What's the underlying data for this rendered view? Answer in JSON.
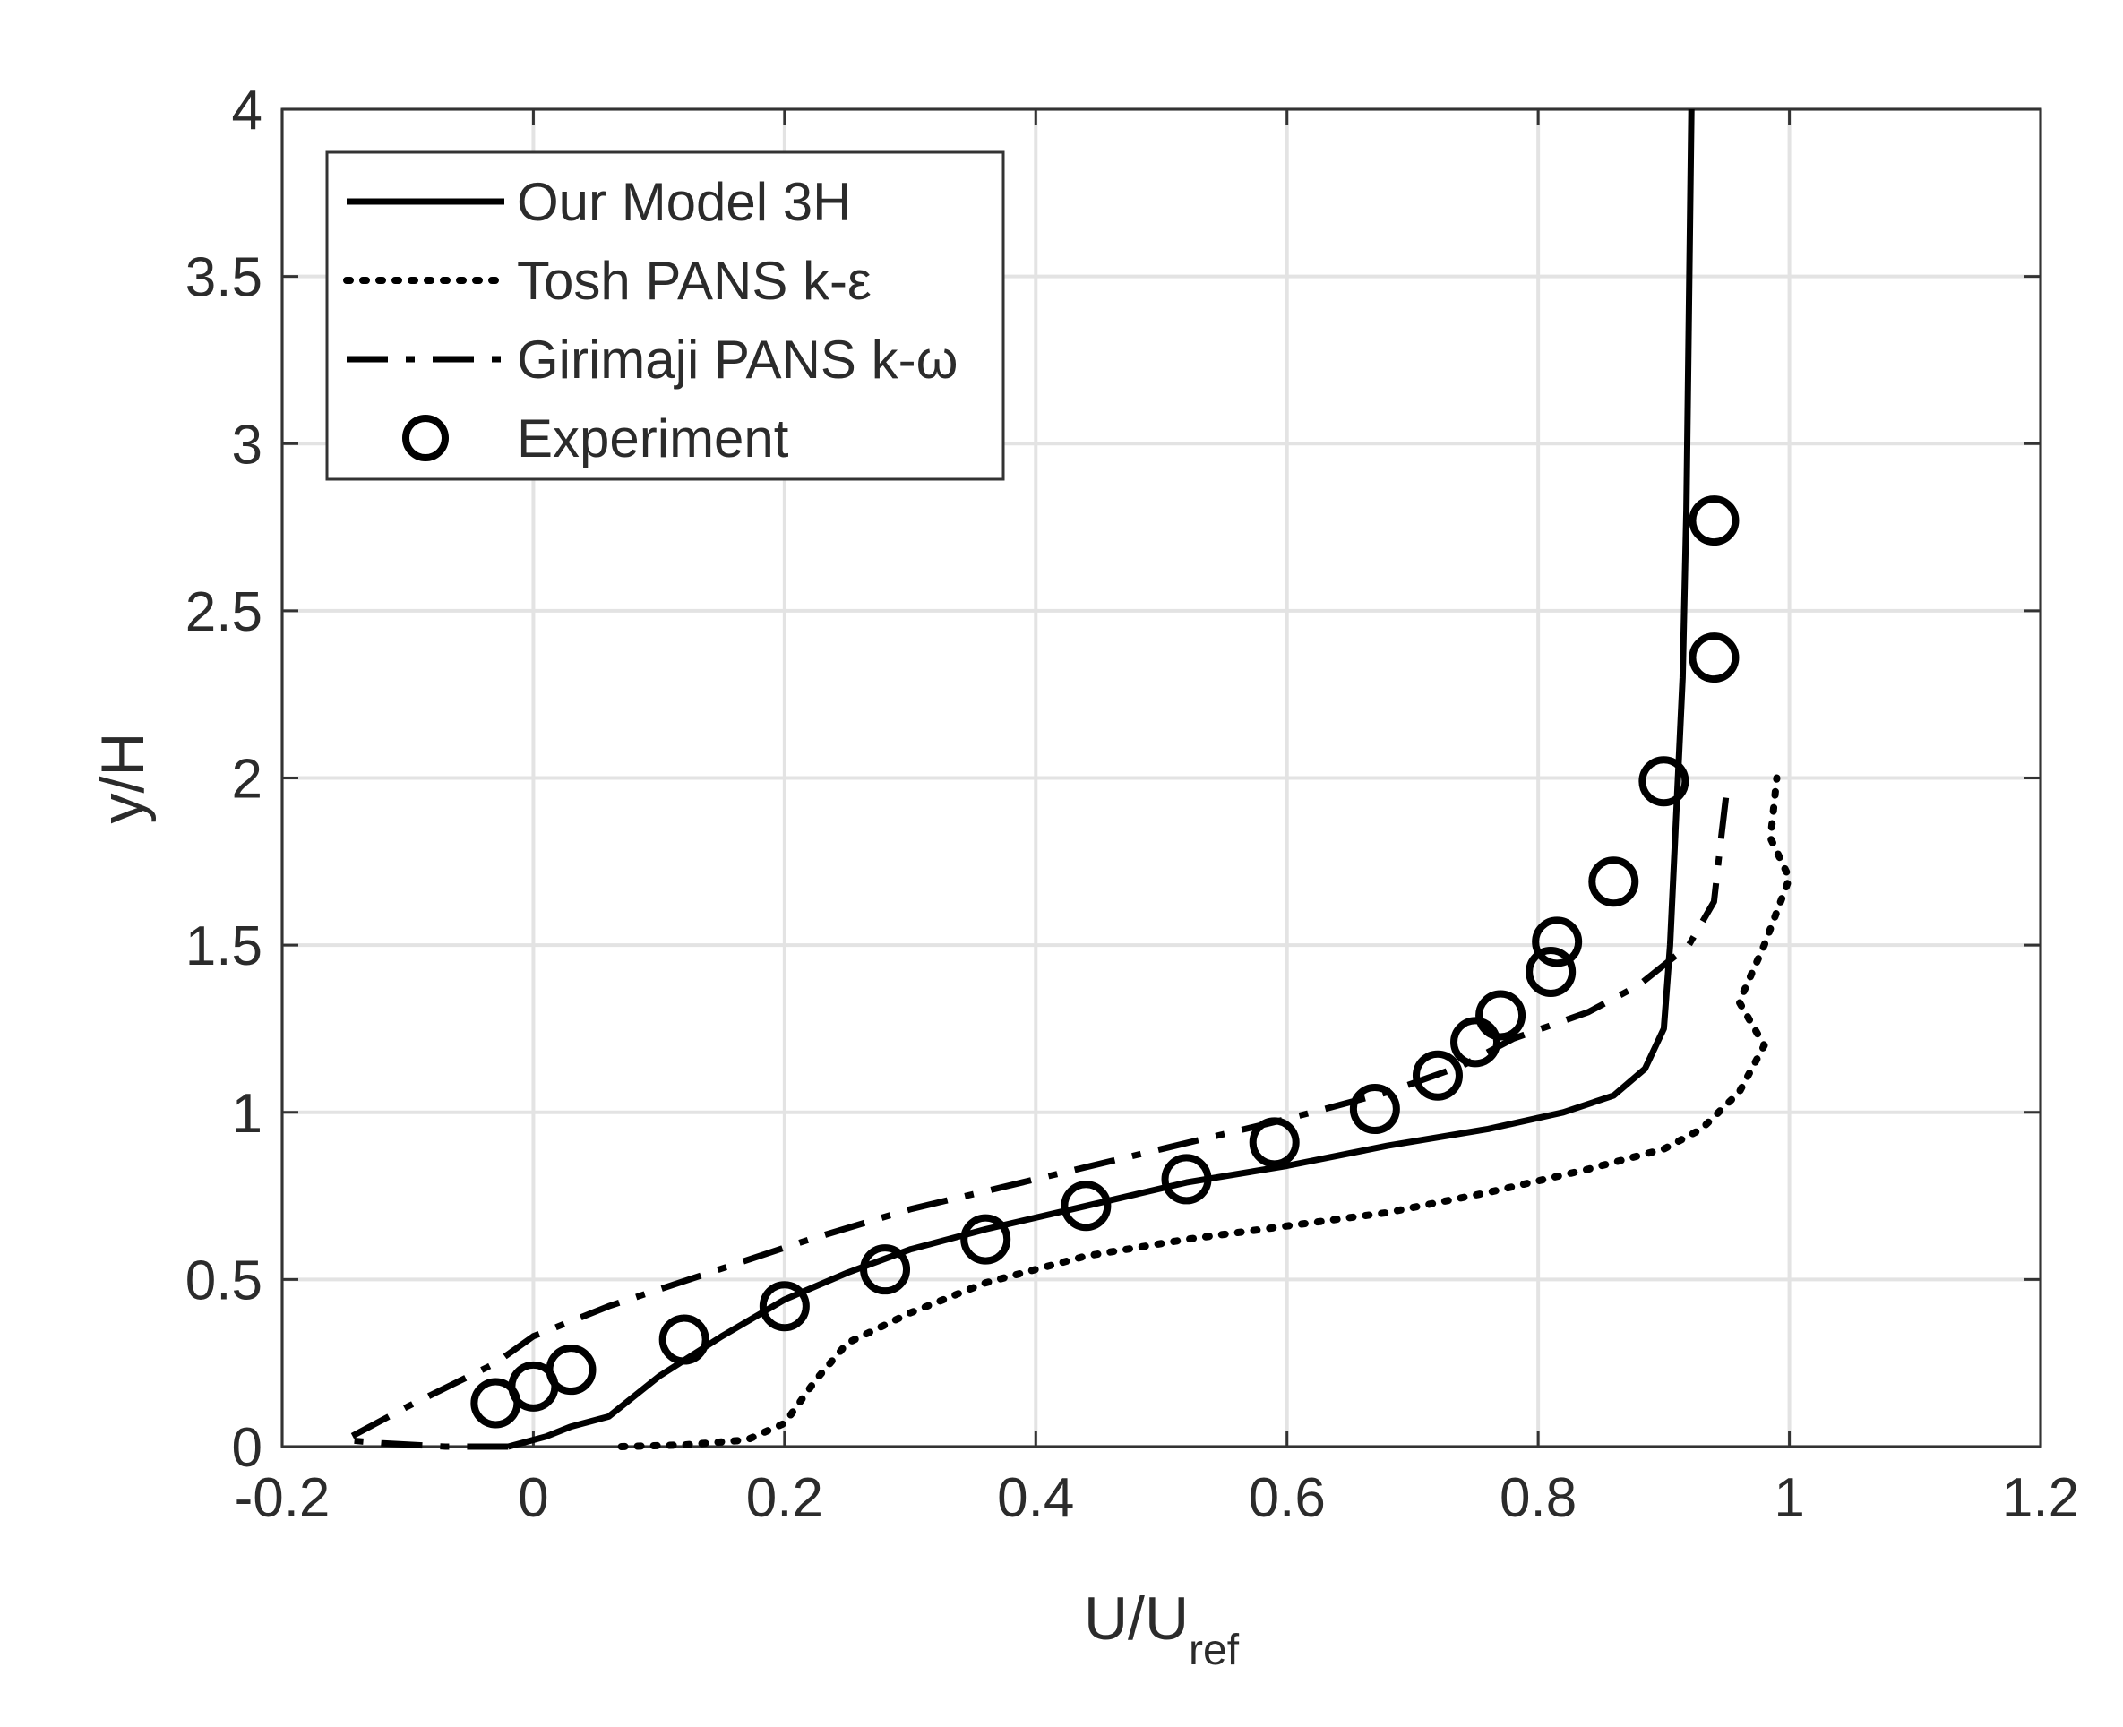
{
  "chart_data": {
    "type": "line",
    "xlabel": "U/U",
    "xlabel_subscript": "ref",
    "ylabel": "y/H",
    "xlim": [
      -0.2,
      1.2
    ],
    "ylim": [
      0,
      4
    ],
    "xticks": [
      -0.2,
      0,
      0.2,
      0.4,
      0.6,
      0.8,
      1,
      1.2
    ],
    "xtick_labels": [
      "-0.2",
      "0",
      "0.2",
      "0.4",
      "0.6",
      "0.8",
      "1",
      "1.2"
    ],
    "yticks": [
      0,
      0.5,
      1,
      1.5,
      2,
      2.5,
      3,
      3.5,
      4
    ],
    "ytick_labels": [
      "0",
      "0.5",
      "1",
      "1.5",
      "2",
      "2.5",
      "3",
      "3.5",
      "4"
    ],
    "grid": true,
    "legend_position": "top-left",
    "series": [
      {
        "name": "Our Model 3H",
        "style": "solid",
        "color": "#000000",
        "points": [
          [
            -0.02,
            0
          ],
          [
            0.01,
            0.03
          ],
          [
            0.03,
            0.06
          ],
          [
            0.06,
            0.09
          ],
          [
            0.1,
            0.21
          ],
          [
            0.15,
            0.33
          ],
          [
            0.2,
            0.44
          ],
          [
            0.25,
            0.52
          ],
          [
            0.3,
            0.59
          ],
          [
            0.36,
            0.65
          ],
          [
            0.44,
            0.72
          ],
          [
            0.52,
            0.79
          ],
          [
            0.6,
            0.84
          ],
          [
            0.68,
            0.9
          ],
          [
            0.76,
            0.95
          ],
          [
            0.82,
            1.0
          ],
          [
            0.86,
            1.05
          ],
          [
            0.885,
            1.13
          ],
          [
            0.9,
            1.25
          ],
          [
            0.905,
            1.5
          ],
          [
            0.91,
            1.9
          ],
          [
            0.915,
            2.3
          ],
          [
            0.918,
            2.8
          ],
          [
            0.92,
            3.4
          ],
          [
            0.922,
            4.0
          ]
        ]
      },
      {
        "name": "Tosh PANS k-ε",
        "style": "dotted",
        "color": "#000000",
        "points": [
          [
            0.07,
            0
          ],
          [
            0.12,
            0.005
          ],
          [
            0.17,
            0.02
          ],
          [
            0.2,
            0.07
          ],
          [
            0.225,
            0.2
          ],
          [
            0.25,
            0.31
          ],
          [
            0.3,
            0.4
          ],
          [
            0.36,
            0.49
          ],
          [
            0.44,
            0.57
          ],
          [
            0.52,
            0.62
          ],
          [
            0.6,
            0.66
          ],
          [
            0.68,
            0.7
          ],
          [
            0.76,
            0.76
          ],
          [
            0.84,
            0.83
          ],
          [
            0.9,
            0.89
          ],
          [
            0.93,
            0.95
          ],
          [
            0.96,
            1.06
          ],
          [
            0.98,
            1.2
          ],
          [
            0.96,
            1.33
          ],
          [
            0.98,
            1.5
          ],
          [
            1.0,
            1.7
          ],
          [
            0.985,
            1.82
          ],
          [
            0.99,
            2.0
          ]
        ]
      },
      {
        "name": "Girimaji PANS k-ω",
        "style": "dashdot",
        "color": "#000000",
        "points": [
          [
            -0.02,
            0
          ],
          [
            -0.07,
            0
          ],
          [
            -0.12,
            0.01
          ],
          [
            -0.15,
            0.02
          ],
          [
            -0.1,
            0.12
          ],
          [
            -0.03,
            0.25
          ],
          [
            0.0,
            0.33
          ],
          [
            0.06,
            0.42
          ],
          [
            0.14,
            0.52
          ],
          [
            0.22,
            0.62
          ],
          [
            0.3,
            0.71
          ],
          [
            0.4,
            0.8
          ],
          [
            0.5,
            0.89
          ],
          [
            0.6,
            0.98
          ],
          [
            0.68,
            1.06
          ],
          [
            0.74,
            1.14
          ],
          [
            0.78,
            1.22
          ],
          [
            0.84,
            1.3
          ],
          [
            0.88,
            1.38
          ],
          [
            0.92,
            1.5
          ],
          [
            0.94,
            1.63
          ],
          [
            0.945,
            1.8
          ],
          [
            0.95,
            1.96
          ]
        ]
      },
      {
        "name": "Experiment",
        "style": "marker",
        "marker": "circle",
        "color": "#000000",
        "points": [
          [
            -0.03,
            0.13
          ],
          [
            0.0,
            0.18
          ],
          [
            0.03,
            0.23
          ],
          [
            0.12,
            0.32
          ],
          [
            0.2,
            0.42
          ],
          [
            0.28,
            0.53
          ],
          [
            0.36,
            0.62
          ],
          [
            0.44,
            0.72
          ],
          [
            0.52,
            0.8
          ],
          [
            0.59,
            0.91
          ],
          [
            0.67,
            1.01
          ],
          [
            0.72,
            1.11
          ],
          [
            0.75,
            1.21
          ],
          [
            0.77,
            1.29
          ],
          [
            0.81,
            1.42
          ],
          [
            0.815,
            1.51
          ],
          [
            0.86,
            1.69
          ],
          [
            0.9,
            1.99
          ],
          [
            0.94,
            2.36
          ],
          [
            0.94,
            2.77
          ]
        ]
      }
    ]
  }
}
